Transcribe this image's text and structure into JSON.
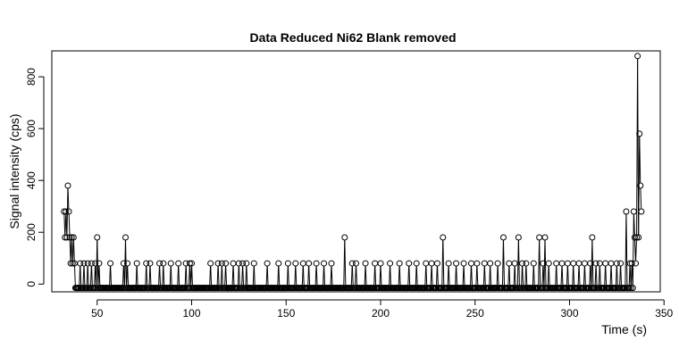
{
  "chart_data": {
    "type": "scatter",
    "title": "Data Reduced Ni62 Blank removed",
    "xlabel": "Time (s)",
    "ylabel": "Signal intensity (cps)",
    "xlim": [
      26,
      348
    ],
    "ylim": [
      -30,
      900
    ],
    "xticks": [
      50,
      100,
      150,
      200,
      250,
      300,
      350
    ],
    "yticks": [
      0,
      200,
      400,
      600,
      800
    ],
    "grid": false,
    "legend": "none",
    "plot_style": "points connected by lines (type b)",
    "point_shape": "open circle",
    "colors": {
      "points": "#000000",
      "lines": "#000000",
      "frame": "#000000"
    },
    "baseline_value": -15,
    "x_range": [
      32.5,
      338
    ],
    "x_step": 0.5,
    "peaks": [
      {
        "x": 32.5,
        "y": 280
      },
      {
        "x": 33,
        "y": 180
      },
      {
        "x": 33.5,
        "y": 280
      },
      {
        "x": 34,
        "y": 180
      },
      {
        "x": 34.5,
        "y": 380
      },
      {
        "x": 35,
        "y": 280
      },
      {
        "x": 35.5,
        "y": 180
      },
      {
        "x": 36,
        "y": 80
      },
      {
        "x": 36.5,
        "y": 180
      },
      {
        "x": 37,
        "y": 80
      },
      {
        "x": 37.5,
        "y": 180
      },
      {
        "x": 38,
        "y": 80
      },
      {
        "x": 41,
        "y": 80
      },
      {
        "x": 43,
        "y": 80
      },
      {
        "x": 45,
        "y": 80
      },
      {
        "x": 47,
        "y": 80
      },
      {
        "x": 49,
        "y": 80
      },
      {
        "x": 50,
        "y": 180
      },
      {
        "x": 51,
        "y": 80
      },
      {
        "x": 57,
        "y": 80
      },
      {
        "x": 64,
        "y": 80
      },
      {
        "x": 65,
        "y": 180
      },
      {
        "x": 66,
        "y": 80
      },
      {
        "x": 71,
        "y": 80
      },
      {
        "x": 76,
        "y": 80
      },
      {
        "x": 78,
        "y": 80
      },
      {
        "x": 83,
        "y": 80
      },
      {
        "x": 85,
        "y": 80
      },
      {
        "x": 89,
        "y": 80
      },
      {
        "x": 93,
        "y": 80
      },
      {
        "x": 97,
        "y": 80
      },
      {
        "x": 99,
        "y": 80
      },
      {
        "x": 100,
        "y": 80
      },
      {
        "x": 110,
        "y": 80
      },
      {
        "x": 114,
        "y": 80
      },
      {
        "x": 116,
        "y": 80
      },
      {
        "x": 118,
        "y": 80
      },
      {
        "x": 122,
        "y": 80
      },
      {
        "x": 125,
        "y": 80
      },
      {
        "x": 127,
        "y": 80
      },
      {
        "x": 129,
        "y": 80
      },
      {
        "x": 133,
        "y": 80
      },
      {
        "x": 140,
        "y": 80
      },
      {
        "x": 146,
        "y": 80
      },
      {
        "x": 151,
        "y": 80
      },
      {
        "x": 155,
        "y": 80
      },
      {
        "x": 159,
        "y": 80
      },
      {
        "x": 162,
        "y": 80
      },
      {
        "x": 166,
        "y": 80
      },
      {
        "x": 170,
        "y": 80
      },
      {
        "x": 174,
        "y": 80
      },
      {
        "x": 181,
        "y": 180
      },
      {
        "x": 185,
        "y": 80
      },
      {
        "x": 187,
        "y": 80
      },
      {
        "x": 192,
        "y": 80
      },
      {
        "x": 197,
        "y": 80
      },
      {
        "x": 200,
        "y": 80
      },
      {
        "x": 205,
        "y": 80
      },
      {
        "x": 210,
        "y": 80
      },
      {
        "x": 215,
        "y": 80
      },
      {
        "x": 219,
        "y": 80
      },
      {
        "x": 224,
        "y": 80
      },
      {
        "x": 227,
        "y": 80
      },
      {
        "x": 230,
        "y": 80
      },
      {
        "x": 233,
        "y": 180
      },
      {
        "x": 236,
        "y": 80
      },
      {
        "x": 240,
        "y": 80
      },
      {
        "x": 244,
        "y": 80
      },
      {
        "x": 248,
        "y": 80
      },
      {
        "x": 251,
        "y": 80
      },
      {
        "x": 255,
        "y": 80
      },
      {
        "x": 258,
        "y": 80
      },
      {
        "x": 262,
        "y": 80
      },
      {
        "x": 265,
        "y": 180
      },
      {
        "x": 268,
        "y": 80
      },
      {
        "x": 271,
        "y": 80
      },
      {
        "x": 273,
        "y": 180
      },
      {
        "x": 275,
        "y": 80
      },
      {
        "x": 277,
        "y": 80
      },
      {
        "x": 281,
        "y": 80
      },
      {
        "x": 284,
        "y": 180
      },
      {
        "x": 286,
        "y": 80
      },
      {
        "x": 287,
        "y": 180
      },
      {
        "x": 289,
        "y": 80
      },
      {
        "x": 293,
        "y": 80
      },
      {
        "x": 296,
        "y": 80
      },
      {
        "x": 299,
        "y": 80
      },
      {
        "x": 302,
        "y": 80
      },
      {
        "x": 305,
        "y": 80
      },
      {
        "x": 308,
        "y": 80
      },
      {
        "x": 311,
        "y": 80
      },
      {
        "x": 312,
        "y": 180
      },
      {
        "x": 314,
        "y": 80
      },
      {
        "x": 316,
        "y": 80
      },
      {
        "x": 319,
        "y": 80
      },
      {
        "x": 322,
        "y": 80
      },
      {
        "x": 325,
        "y": 80
      },
      {
        "x": 327,
        "y": 80
      },
      {
        "x": 330,
        "y": 280
      },
      {
        "x": 332,
        "y": 80
      },
      {
        "x": 333,
        "y": 80
      },
      {
        "x": 334,
        "y": 280
      },
      {
        "x": 334.5,
        "y": 180
      },
      {
        "x": 335,
        "y": 80
      },
      {
        "x": 335.5,
        "y": 180
      },
      {
        "x": 336,
        "y": 880
      },
      {
        "x": 336.5,
        "y": 180
      },
      {
        "x": 337,
        "y": 580
      },
      {
        "x": 337.5,
        "y": 380
      },
      {
        "x": 338,
        "y": 280
      }
    ]
  }
}
